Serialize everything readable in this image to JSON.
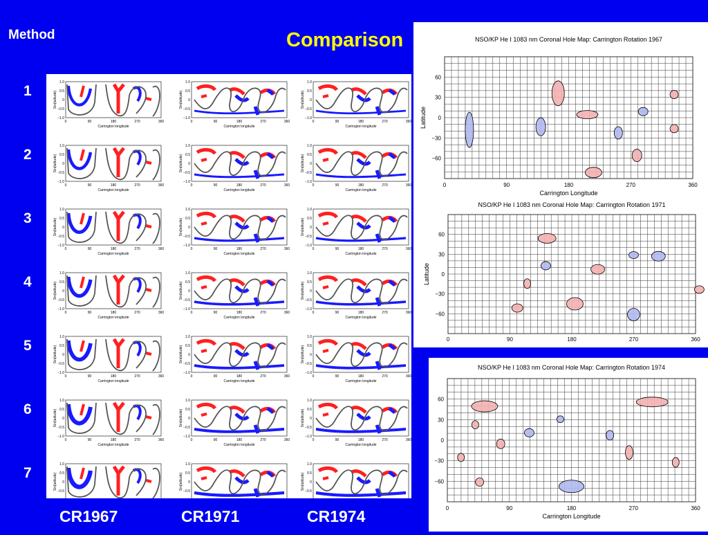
{
  "method_label": "Method",
  "title": "Comparison",
  "rows": [
    "1",
    "2",
    "3",
    "4",
    "5",
    "6",
    "7"
  ],
  "columns": [
    "CR1967",
    "CR1971",
    "CR1974"
  ],
  "thumb": {
    "yticks": [
      "1.0",
      "0.5",
      "0",
      "−0.5",
      "−1.0"
    ],
    "xticks": [
      "0",
      "90",
      "180",
      "270",
      "360"
    ],
    "xlabel": "Carrington longitude",
    "ylabel": "Sin(latitude)"
  },
  "maps": [
    {
      "title": "NSO/KP He I 1083 nm Coronal Hole Map: Carrington Rotation 1967",
      "xlabel": "Carrington Longitude",
      "ylabel": "Latitude",
      "yticks": [
        "60",
        "30",
        "0",
        "−30",
        "−60"
      ],
      "xticks": [
        "0",
        "90",
        "180",
        "270",
        "360"
      ]
    },
    {
      "title": "NSO/KP He I 1083 nm Coronal Hole Map: Carrington Rotation 1971",
      "xlabel": "",
      "ylabel": "Latitude",
      "yticks": [
        "60",
        "30",
        "0",
        "−30",
        "−60"
      ],
      "xticks": [
        "0",
        "90",
        "180",
        "270",
        "360"
      ]
    },
    {
      "title": "NSO/KP He I 1083 nm Coronal Hole Map: Carrington Rotation 1974",
      "xlabel": "Carrington Longitude",
      "ylabel": "Latitude",
      "yticks": [
        "60",
        "30",
        "0",
        "−30",
        "−60"
      ],
      "xticks": [
        "0",
        "90",
        "180",
        "270",
        "360"
      ]
    }
  ],
  "colors": {
    "background": "#0000f0",
    "title": "#ffff00",
    "text": "#ffffff",
    "positive": "#ff2020",
    "negative": "#1a1aff",
    "boundary": "#555555"
  }
}
